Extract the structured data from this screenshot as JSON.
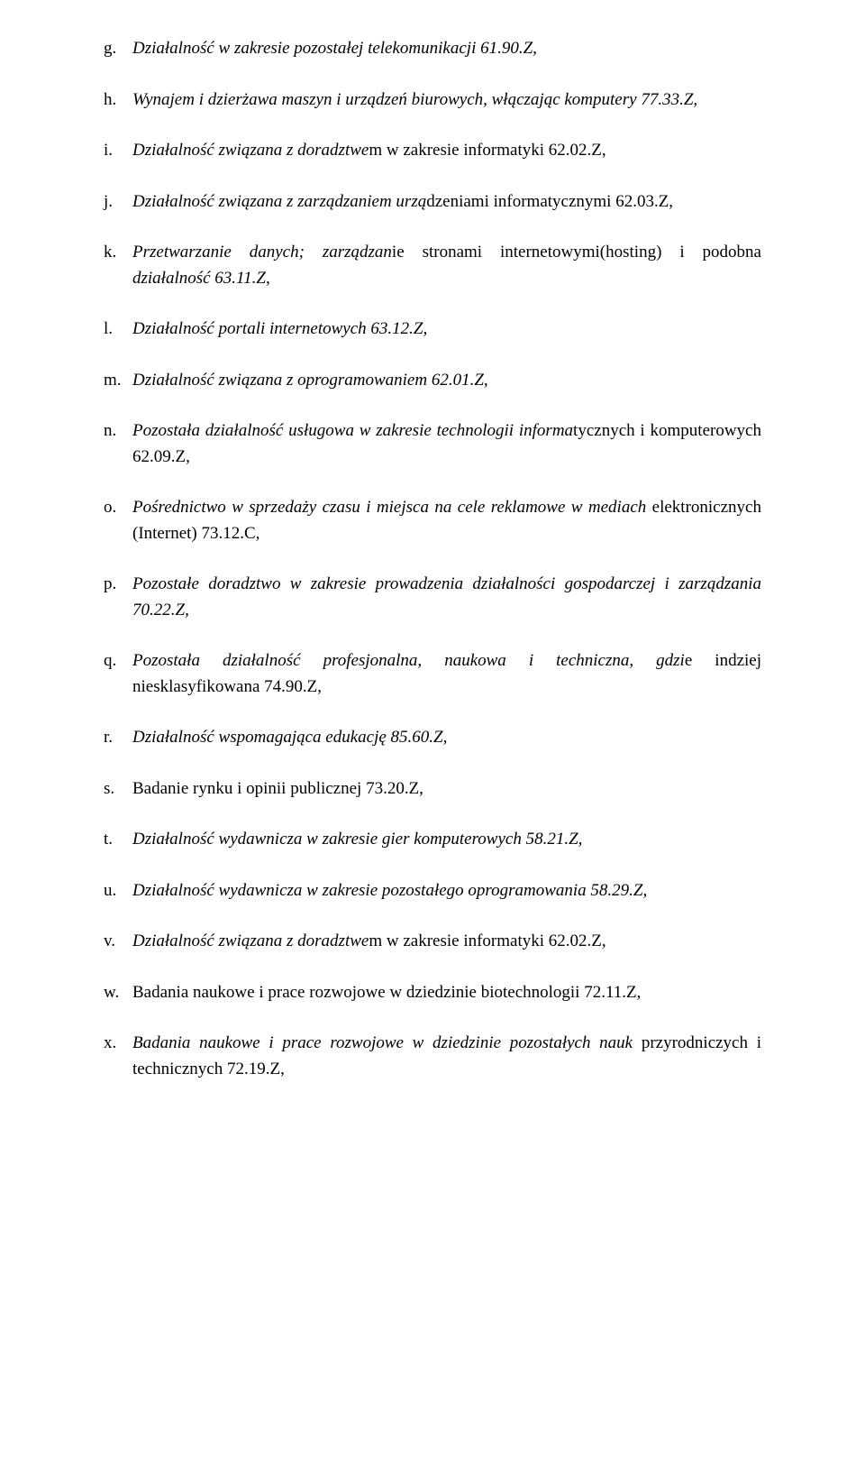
{
  "items": [
    {
      "marker": "g.",
      "parts": [
        {
          "text": "Działalność w zakresie pozostałej telekomunikacji 61.90.Z,",
          "italic": true
        }
      ]
    },
    {
      "marker": "h.",
      "parts": [
        {
          "text": "Wynajem i dzierżawa maszyn i urządzeń biurowych, włączając komputery 77.33.Z,",
          "italic": true
        }
      ]
    },
    {
      "marker": "i.",
      "parts": [
        {
          "text": "Działalność związana z doradztwe",
          "italic": true
        },
        {
          "text": "m w zakresie informatyki 62.02.Z,",
          "italic": false
        }
      ]
    },
    {
      "marker": "j.",
      "parts": [
        {
          "text": "Działalność związana z zarządzaniem urzą",
          "italic": true
        },
        {
          "text": "dzeniami informatycznymi 62.03.Z,",
          "italic": false
        }
      ]
    },
    {
      "marker": "k.",
      "parts": [
        {
          "text": "Przetwarzanie danych; zarządzan",
          "italic": true
        },
        {
          "text": "ie stronami internetowymi(hosting) i podobna ",
          "italic": false
        },
        {
          "text": "działalność 63.11.Z,",
          "italic": true
        }
      ]
    },
    {
      "marker": "l.",
      "parts": [
        {
          "text": "Działalność portali internetowych 63.12.Z,",
          "italic": true
        }
      ]
    },
    {
      "marker": "m.",
      "parts": [
        {
          "text": "Działalność związana z oprogramowaniem 62.01.Z,",
          "italic": true
        }
      ]
    },
    {
      "marker": "n.",
      "parts": [
        {
          "text": "Pozostała działalność usługowa w zakresie technologii informa",
          "italic": true
        },
        {
          "text": "tycznych i komputerowych 62.09.Z,",
          "italic": false
        }
      ]
    },
    {
      "marker": "o.",
      "parts": [
        {
          "text": "Pośrednictwo w sprzedaży czasu i miejsca na cele reklamowe w mediach ",
          "italic": true
        },
        {
          "text": "elektronicznych (Internet) 73.12.C,",
          "italic": false
        }
      ]
    },
    {
      "marker": "p.",
      "parts": [
        {
          "text": "Pozostałe doradztwo w zakresie prowadzenia działalności gospodarczej i zarządzania 70.22.Z,",
          "italic": true
        }
      ]
    },
    {
      "marker": "q.",
      "parts": [
        {
          "text": "Pozostała działalność profesjonalna, naukowa i techniczna, gdzi",
          "italic": true
        },
        {
          "text": "e indziej niesklasyfikowana 74.90.Z,",
          "italic": false
        }
      ]
    },
    {
      "marker": "r.",
      "parts": [
        {
          "text": "Działalność wspomagająca edukację 85.60.Z,",
          "italic": true
        }
      ]
    },
    {
      "marker": "s.",
      "parts": [
        {
          "text": "Badanie rynku i opinii publicznej 73.20.Z,",
          "italic": false
        }
      ]
    },
    {
      "marker": "t.",
      "parts": [
        {
          "text": "Działalność wydawnicza w zakresie gier komputerowych 58.21.Z,",
          "italic": true
        }
      ]
    },
    {
      "marker": "u.",
      "parts": [
        {
          "text": "Działalność wydawnicza w zakresie pozostałego oprogramowania 58.29.Z,",
          "italic": true
        }
      ]
    },
    {
      "marker": "v.",
      "parts": [
        {
          "text": "Działalność związana z doradztwe",
          "italic": true
        },
        {
          "text": "m w zakresie informatyki 62.02.Z,",
          "italic": false
        }
      ]
    },
    {
      "marker": "w.",
      "parts": [
        {
          "text": "Badania naukowe i prace rozwojowe w dziedzinie biotechnologii 72.11.Z,",
          "italic": false
        }
      ]
    },
    {
      "marker": "x.",
      "parts": [
        {
          "text": "Badania naukowe i prace rozwojowe w dziedzinie pozostałych nauk ",
          "italic": true
        },
        {
          "text": "przyrodniczych i technicznych 72.19.Z,",
          "italic": false
        }
      ]
    }
  ]
}
